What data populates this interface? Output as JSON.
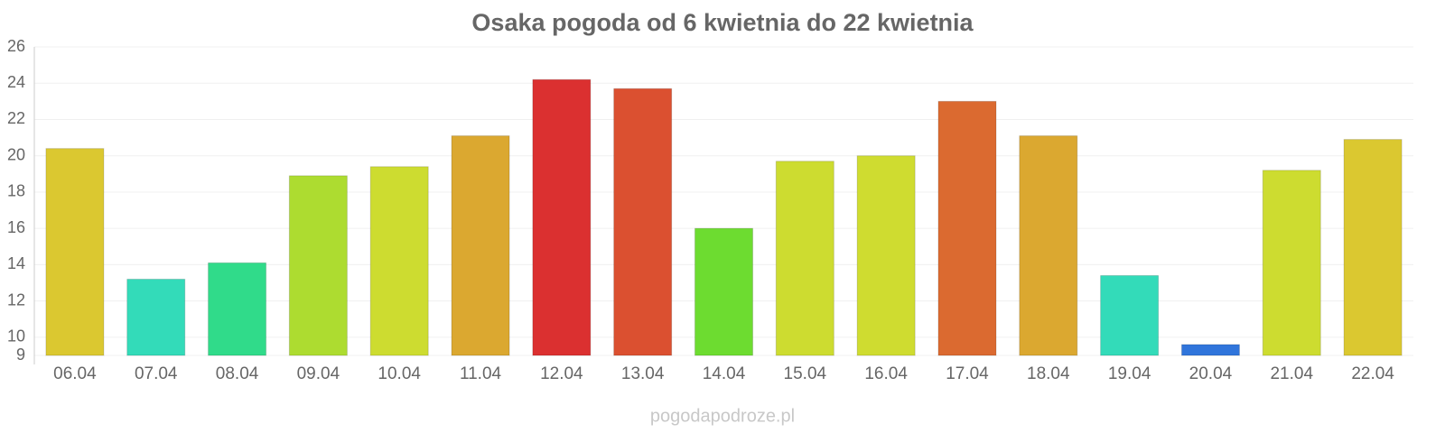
{
  "chart_data": {
    "type": "bar",
    "title": "Osaka pogoda od 6 kwietnia do 22 kwietnia",
    "categories": [
      "06.04",
      "07.04",
      "08.04",
      "09.04",
      "10.04",
      "11.04",
      "12.04",
      "13.04",
      "14.04",
      "15.04",
      "16.04",
      "17.04",
      "18.04",
      "19.04",
      "20.04",
      "21.04",
      "22.04"
    ],
    "values": [
      20.4,
      13.2,
      14.1,
      18.9,
      19.4,
      21.1,
      24.2,
      23.7,
      16.0,
      19.7,
      20.0,
      23.0,
      21.1,
      13.4,
      9.6,
      19.2,
      20.9
    ],
    "colors": [
      "#dbc830",
      "#33dbb9",
      "#30db8a",
      "#addc30",
      "#cddc30",
      "#dba830",
      "#db3030",
      "#db5030",
      "#6ddc30",
      "#cddc30",
      "#cfdc30",
      "#db6a30",
      "#dba830",
      "#33dbb9",
      "#3075db",
      "#cddc30",
      "#dbc830"
    ],
    "ylim": [
      9,
      26
    ],
    "yticks": [
      9,
      10,
      12,
      14,
      16,
      18,
      20,
      22,
      24,
      26
    ],
    "grid": true,
    "source": "pogodapodroze.pl"
  }
}
